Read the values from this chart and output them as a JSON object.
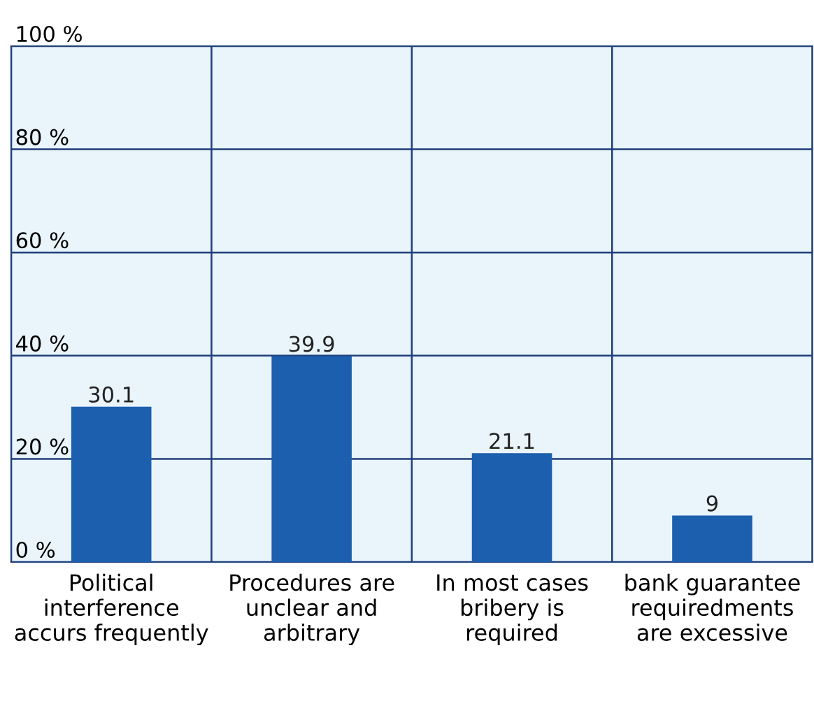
{
  "chart_data": {
    "type": "bar",
    "categories": [
      "Political\ninterference\naccurs frequently",
      "Procedures are\nunclear and\narbitrary",
      "In most cases\nbribery is\nrequired",
      "bank guarantee\nrequiredments\nare excessive"
    ],
    "values": [
      30.1,
      39.9,
      21.1,
      9
    ],
    "color": "#1b5fae",
    "data_labels": true,
    "ylim": [
      0,
      100
    ],
    "yticks": [
      {
        "value": 0,
        "label": "0 %"
      },
      {
        "value": 20,
        "label": "20 %"
      },
      {
        "value": 40,
        "label": "40 %"
      },
      {
        "value": 60,
        "label": "60 %"
      },
      {
        "value": 80,
        "label": "80 %"
      },
      {
        "value": 100,
        "label": "100 %"
      }
    ],
    "grid": true
  }
}
